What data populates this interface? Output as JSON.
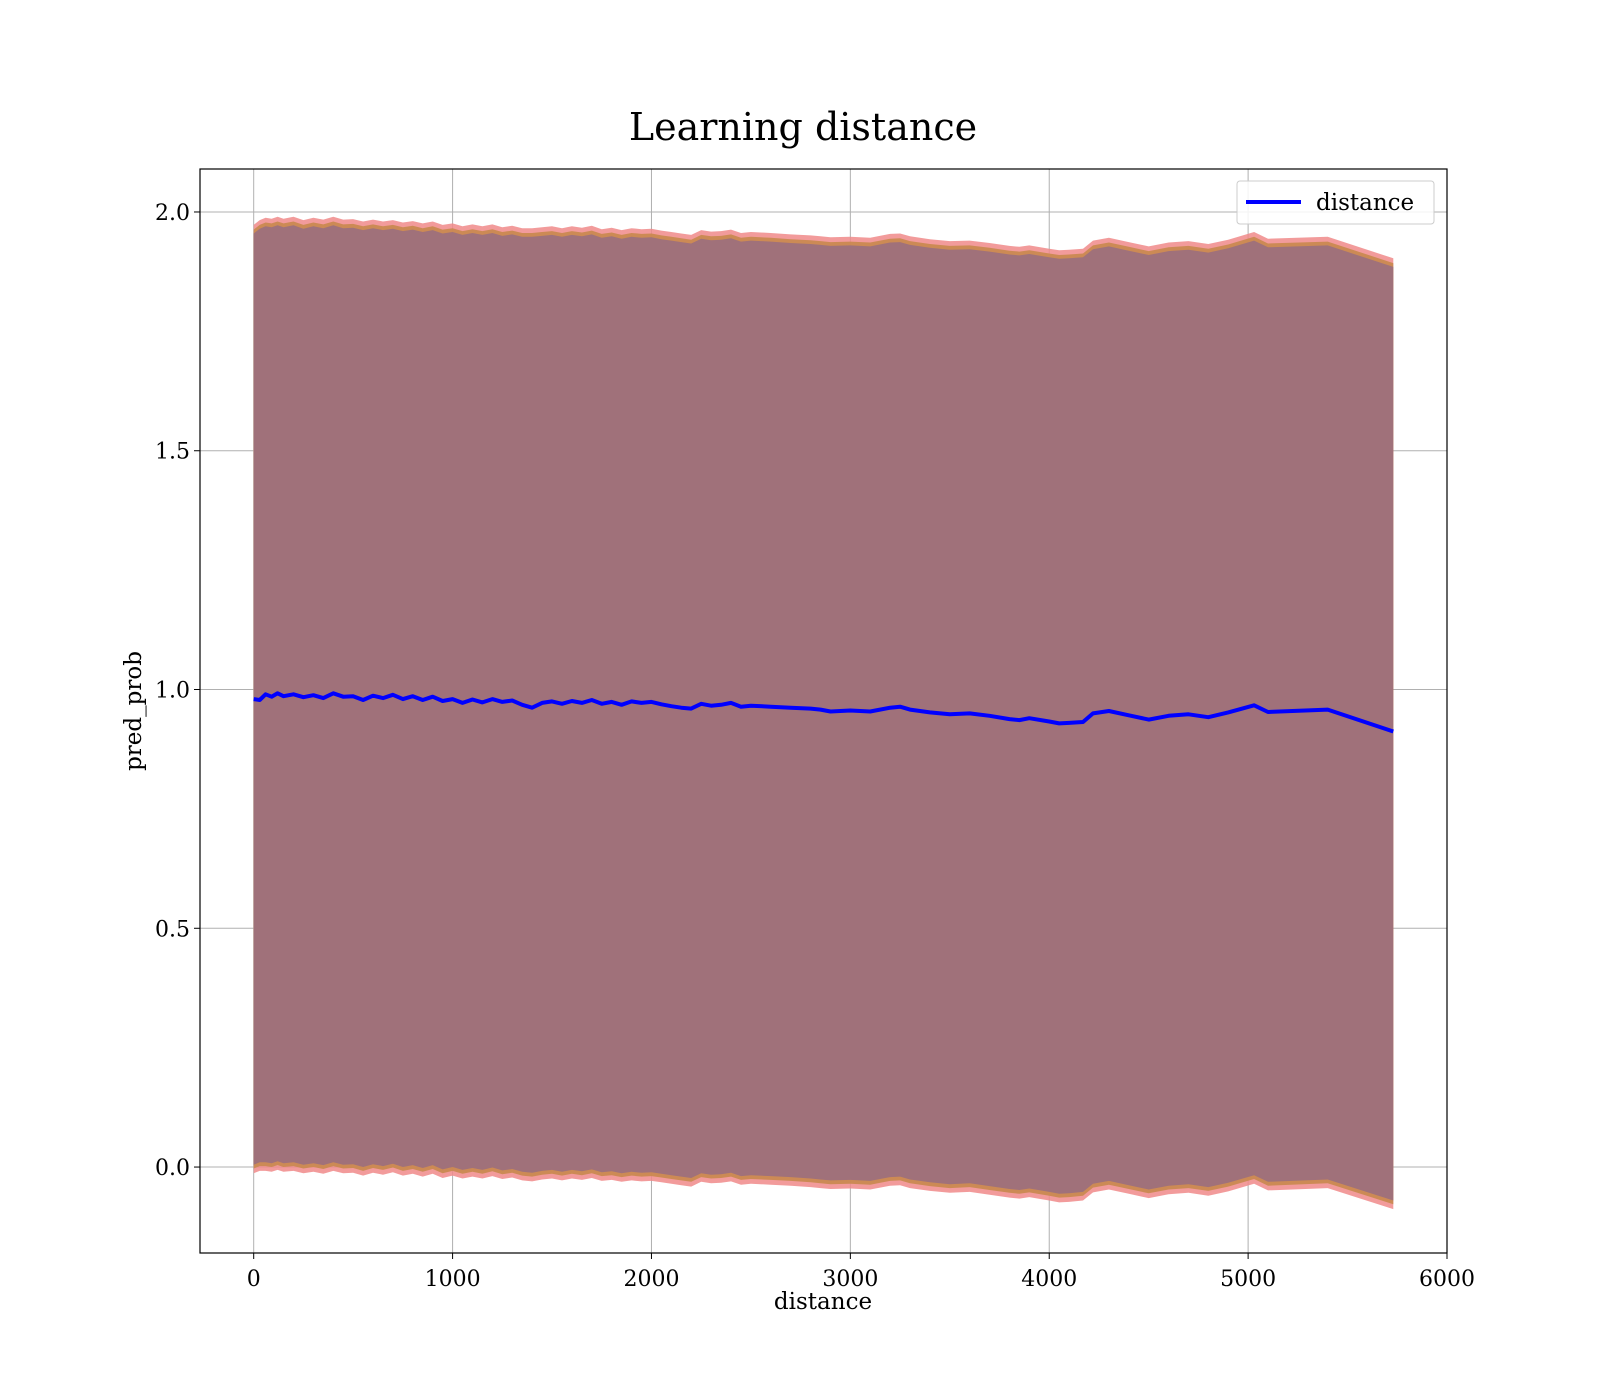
{
  "chart_data": {
    "type": "line",
    "title": "Learning distance",
    "xlabel": "distance",
    "ylabel": "pred_prob",
    "xlim": [
      -270,
      6000
    ],
    "ylim": [
      -0.18,
      2.09
    ],
    "x_ticks": [
      0,
      1000,
      2000,
      3000,
      4000,
      5000,
      6000
    ],
    "x_tick_labels": [
      "0",
      "1000",
      "2000",
      "3000",
      "4000",
      "5000",
      "6000"
    ],
    "y_ticks": [
      0.0,
      0.5,
      1.0,
      1.5,
      2.0
    ],
    "y_tick_labels": [
      "0.0",
      "0.5",
      "1.0",
      "1.5",
      "2.0"
    ],
    "grid": true,
    "legend_position": "top-right",
    "series": [
      {
        "name": "distance",
        "color": "#0000ff",
        "x": [
          0,
          30,
          60,
          90,
          120,
          150,
          200,
          250,
          300,
          350,
          400,
          450,
          500,
          550,
          600,
          650,
          700,
          750,
          800,
          850,
          900,
          950,
          1000,
          1050,
          1100,
          1150,
          1200,
          1250,
          1300,
          1350,
          1400,
          1450,
          1500,
          1550,
          1600,
          1650,
          1700,
          1750,
          1800,
          1850,
          1900,
          1950,
          2000,
          2050,
          2100,
          2150,
          2200,
          2250,
          2300,
          2350,
          2400,
          2450,
          2500,
          2600,
          2700,
          2800,
          2850,
          2900,
          3000,
          3100,
          3200,
          3250,
          3300,
          3400,
          3500,
          3600,
          3700,
          3800,
          3850,
          3900,
          4000,
          4050,
          4100,
          4170,
          4220,
          4300,
          4400,
          4500,
          4600,
          4700,
          4800,
          4900,
          5030,
          5100,
          5400,
          5730
        ],
        "values": [
          0.98,
          0.978,
          0.99,
          0.985,
          0.992,
          0.986,
          0.99,
          0.984,
          0.988,
          0.982,
          0.992,
          0.985,
          0.986,
          0.978,
          0.987,
          0.982,
          0.989,
          0.98,
          0.986,
          0.978,
          0.985,
          0.976,
          0.98,
          0.972,
          0.979,
          0.973,
          0.98,
          0.974,
          0.977,
          0.968,
          0.962,
          0.972,
          0.975,
          0.97,
          0.976,
          0.972,
          0.978,
          0.97,
          0.974,
          0.968,
          0.975,
          0.972,
          0.974,
          0.969,
          0.965,
          0.962,
          0.96,
          0.97,
          0.966,
          0.968,
          0.972,
          0.964,
          0.966,
          0.964,
          0.962,
          0.96,
          0.958,
          0.954,
          0.956,
          0.954,
          0.962,
          0.964,
          0.958,
          0.952,
          0.948,
          0.95,
          0.945,
          0.938,
          0.936,
          0.94,
          0.933,
          0.929,
          0.93,
          0.932,
          0.95,
          0.955,
          0.946,
          0.937,
          0.945,
          0.948,
          0.942,
          0.952,
          0.967,
          0.953,
          0.958,
          0.912
        ],
        "band_upper": [
          1.955,
          1.965,
          1.97,
          1.968,
          1.972,
          1.968,
          1.972,
          1.965,
          1.97,
          1.966,
          1.972,
          1.966,
          1.967,
          1.962,
          1.966,
          1.962,
          1.965,
          1.96,
          1.963,
          1.958,
          1.962,
          1.955,
          1.958,
          1.952,
          1.956,
          1.952,
          1.956,
          1.95,
          1.953,
          1.948,
          1.948,
          1.95,
          1.952,
          1.948,
          1.952,
          1.949,
          1.953,
          1.946,
          1.949,
          1.944,
          1.948,
          1.946,
          1.947,
          1.943,
          1.94,
          1.937,
          1.934,
          1.944,
          1.941,
          1.942,
          1.945,
          1.938,
          1.94,
          1.938,
          1.935,
          1.933,
          1.931,
          1.929,
          1.93,
          1.928,
          1.936,
          1.937,
          1.931,
          1.925,
          1.921,
          1.922,
          1.917,
          1.911,
          1.909,
          1.912,
          1.905,
          1.902,
          1.903,
          1.905,
          1.922,
          1.928,
          1.919,
          1.91,
          1.918,
          1.921,
          1.915,
          1.924,
          1.94,
          1.926,
          1.93,
          1.885
        ],
        "band_lower": [
          0.005,
          0.01,
          0.01,
          0.008,
          0.012,
          0.008,
          0.01,
          0.005,
          0.008,
          0.004,
          0.01,
          0.005,
          0.006,
          0.0,
          0.006,
          0.002,
          0.007,
          0.0,
          0.004,
          -0.002,
          0.004,
          -0.005,
          0.0,
          -0.006,
          -0.002,
          -0.006,
          -0.001,
          -0.007,
          -0.004,
          -0.01,
          -0.012,
          -0.008,
          -0.006,
          -0.01,
          -0.006,
          -0.009,
          -0.005,
          -0.011,
          -0.009,
          -0.013,
          -0.01,
          -0.012,
          -0.011,
          -0.014,
          -0.017,
          -0.02,
          -0.023,
          -0.013,
          -0.016,
          -0.015,
          -0.012,
          -0.019,
          -0.017,
          -0.019,
          -0.021,
          -0.024,
          -0.026,
          -0.028,
          -0.027,
          -0.029,
          -0.021,
          -0.02,
          -0.026,
          -0.032,
          -0.036,
          -0.034,
          -0.04,
          -0.046,
          -0.048,
          -0.045,
          -0.052,
          -0.056,
          -0.055,
          -0.052,
          -0.035,
          -0.029,
          -0.038,
          -0.047,
          -0.039,
          -0.036,
          -0.042,
          -0.033,
          -0.017,
          -0.031,
          -0.026,
          -0.07
        ]
      }
    ]
  }
}
